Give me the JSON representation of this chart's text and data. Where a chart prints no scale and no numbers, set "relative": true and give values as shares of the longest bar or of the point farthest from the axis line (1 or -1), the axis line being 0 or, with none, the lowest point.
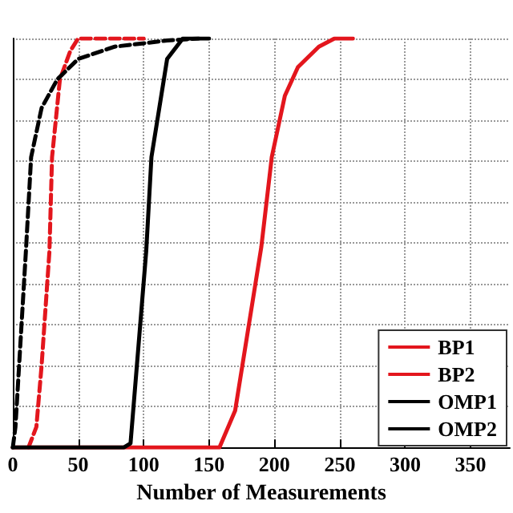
{
  "chart_data": {
    "type": "line",
    "xlabel": "Number of Measurements",
    "relative": true,
    "xlim": [
      0,
      380
    ],
    "xticks": [
      0,
      50,
      100,
      150,
      200,
      250,
      300,
      350
    ],
    "grid": true,
    "legend": "bottom right",
    "marker": "none",
    "series": [
      {
        "name": "BP1",
        "color": "#e3161d",
        "line_style": "solid",
        "x": [
          0,
          158,
          170,
          190,
          198,
          208,
          218,
          234,
          246,
          260
        ],
        "values": [
          0,
          0,
          0.09,
          0.49,
          0.71,
          0.86,
          0.93,
          0.98,
          1,
          1
        ]
      },
      {
        "name": "BP2",
        "color": "#e3161d",
        "line_style": "dashed",
        "x": [
          12,
          18,
          22,
          28,
          30,
          36,
          44,
          50,
          100
        ],
        "values": [
          0,
          0.05,
          0.2,
          0.48,
          0.71,
          0.9,
          0.97,
          1,
          1
        ]
      },
      {
        "name": "OMP1",
        "color": "#000000",
        "line_style": "solid",
        "x": [
          0,
          85,
          90,
          102,
          106,
          112,
          118,
          130,
          150
        ],
        "values": [
          0,
          0,
          0.01,
          0.48,
          0.71,
          0.83,
          0.95,
          1,
          1
        ]
      },
      {
        "name": "OMP2",
        "color": "#000000",
        "line_style": "dashed",
        "x": [
          0,
          2,
          10,
          14,
          22,
          34,
          50,
          78,
          118,
          142
        ],
        "values": [
          0,
          0.05,
          0.48,
          0.71,
          0.83,
          0.9,
          0.95,
          0.98,
          0.995,
          1
        ]
      }
    ]
  }
}
